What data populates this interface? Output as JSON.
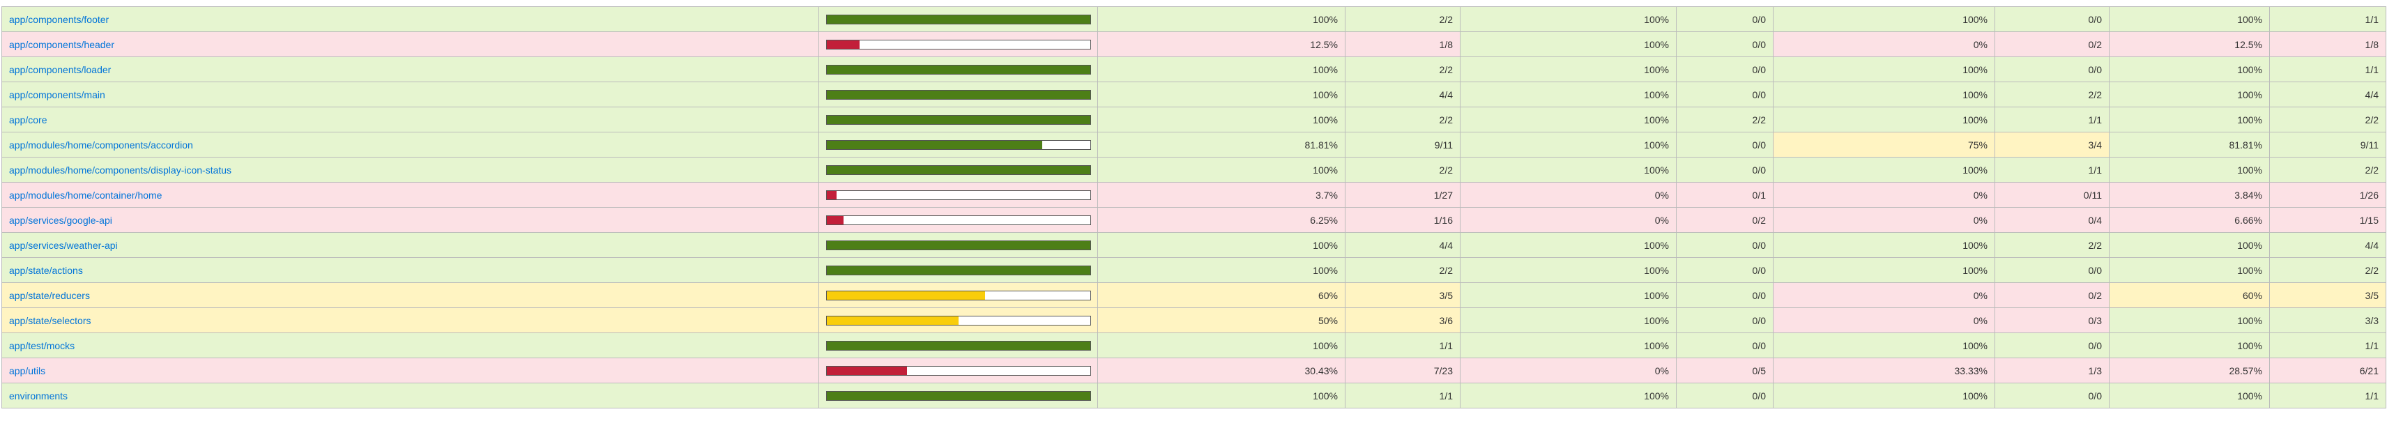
{
  "rows": [
    {
      "file": "app/components/footer",
      "level": "high",
      "fill": 1.0,
      "stmt_pct": "100%",
      "stmt_frac": "2/2",
      "br_pct": "100%",
      "br_frac": "0/0",
      "fn_pct": "100%",
      "fn_frac": "0/0",
      "ln_pct": "100%",
      "ln_frac": "1/1",
      "br_level": "high",
      "fn_level": "high",
      "ln_level": "high"
    },
    {
      "file": "app/components/header",
      "level": "low",
      "fill": 0.125,
      "stmt_pct": "12.5%",
      "stmt_frac": "1/8",
      "br_pct": "100%",
      "br_frac": "0/0",
      "fn_pct": "0%",
      "fn_frac": "0/2",
      "ln_pct": "12.5%",
      "ln_frac": "1/8",
      "br_level": "high",
      "fn_level": "low",
      "ln_level": "low"
    },
    {
      "file": "app/components/loader",
      "level": "high",
      "fill": 1.0,
      "stmt_pct": "100%",
      "stmt_frac": "2/2",
      "br_pct": "100%",
      "br_frac": "0/0",
      "fn_pct": "100%",
      "fn_frac": "0/0",
      "ln_pct": "100%",
      "ln_frac": "1/1",
      "br_level": "high",
      "fn_level": "high",
      "ln_level": "high"
    },
    {
      "file": "app/components/main",
      "level": "high",
      "fill": 1.0,
      "stmt_pct": "100%",
      "stmt_frac": "4/4",
      "br_pct": "100%",
      "br_frac": "0/0",
      "fn_pct": "100%",
      "fn_frac": "2/2",
      "ln_pct": "100%",
      "ln_frac": "4/4",
      "br_level": "high",
      "fn_level": "high",
      "ln_level": "high"
    },
    {
      "file": "app/core",
      "level": "high",
      "fill": 1.0,
      "stmt_pct": "100%",
      "stmt_frac": "2/2",
      "br_pct": "100%",
      "br_frac": "2/2",
      "fn_pct": "100%",
      "fn_frac": "1/1",
      "ln_pct": "100%",
      "ln_frac": "2/2",
      "br_level": "high",
      "fn_level": "high",
      "ln_level": "high"
    },
    {
      "file": "app/modules/home/components/accordion",
      "level": "high",
      "fill": 0.8181,
      "stmt_pct": "81.81%",
      "stmt_frac": "9/11",
      "br_pct": "100%",
      "br_frac": "0/0",
      "fn_pct": "75%",
      "fn_frac": "3/4",
      "ln_pct": "81.81%",
      "ln_frac": "9/11",
      "br_level": "high",
      "fn_level": "medium",
      "ln_level": "high"
    },
    {
      "file": "app/modules/home/components/display-icon-status",
      "level": "high",
      "fill": 1.0,
      "stmt_pct": "100%",
      "stmt_frac": "2/2",
      "br_pct": "100%",
      "br_frac": "0/0",
      "fn_pct": "100%",
      "fn_frac": "1/1",
      "ln_pct": "100%",
      "ln_frac": "2/2",
      "br_level": "high",
      "fn_level": "high",
      "ln_level": "high"
    },
    {
      "file": "app/modules/home/container/home",
      "level": "low",
      "fill": 0.037,
      "stmt_pct": "3.7%",
      "stmt_frac": "1/27",
      "br_pct": "0%",
      "br_frac": "0/1",
      "fn_pct": "0%",
      "fn_frac": "0/11",
      "ln_pct": "3.84%",
      "ln_frac": "1/26",
      "br_level": "low",
      "fn_level": "low",
      "ln_level": "low"
    },
    {
      "file": "app/services/google-api",
      "level": "low",
      "fill": 0.0625,
      "stmt_pct": "6.25%",
      "stmt_frac": "1/16",
      "br_pct": "0%",
      "br_frac": "0/2",
      "fn_pct": "0%",
      "fn_frac": "0/4",
      "ln_pct": "6.66%",
      "ln_frac": "1/15",
      "br_level": "low",
      "fn_level": "low",
      "ln_level": "low"
    },
    {
      "file": "app/services/weather-api",
      "level": "high",
      "fill": 1.0,
      "stmt_pct": "100%",
      "stmt_frac": "4/4",
      "br_pct": "100%",
      "br_frac": "0/0",
      "fn_pct": "100%",
      "fn_frac": "2/2",
      "ln_pct": "100%",
      "ln_frac": "4/4",
      "br_level": "high",
      "fn_level": "high",
      "ln_level": "high"
    },
    {
      "file": "app/state/actions",
      "level": "high",
      "fill": 1.0,
      "stmt_pct": "100%",
      "stmt_frac": "2/2",
      "br_pct": "100%",
      "br_frac": "0/0",
      "fn_pct": "100%",
      "fn_frac": "0/0",
      "ln_pct": "100%",
      "ln_frac": "2/2",
      "br_level": "high",
      "fn_level": "high",
      "ln_level": "high"
    },
    {
      "file": "app/state/reducers",
      "level": "medium",
      "fill": 0.6,
      "stmt_pct": "60%",
      "stmt_frac": "3/5",
      "br_pct": "100%",
      "br_frac": "0/0",
      "fn_pct": "0%",
      "fn_frac": "0/2",
      "ln_pct": "60%",
      "ln_frac": "3/5",
      "br_level": "high",
      "fn_level": "low",
      "ln_level": "medium"
    },
    {
      "file": "app/state/selectors",
      "level": "medium",
      "fill": 0.5,
      "stmt_pct": "50%",
      "stmt_frac": "3/6",
      "br_pct": "100%",
      "br_frac": "0/0",
      "fn_pct": "0%",
      "fn_frac": "0/3",
      "ln_pct": "100%",
      "ln_frac": "3/3",
      "br_level": "high",
      "fn_level": "low",
      "ln_level": "high"
    },
    {
      "file": "app/test/mocks",
      "level": "high",
      "fill": 1.0,
      "stmt_pct": "100%",
      "stmt_frac": "1/1",
      "br_pct": "100%",
      "br_frac": "0/0",
      "fn_pct": "100%",
      "fn_frac": "0/0",
      "ln_pct": "100%",
      "ln_frac": "1/1",
      "br_level": "high",
      "fn_level": "high",
      "ln_level": "high"
    },
    {
      "file": "app/utils",
      "level": "low",
      "fill": 0.3043,
      "stmt_pct": "30.43%",
      "stmt_frac": "7/23",
      "br_pct": "0%",
      "br_frac": "0/5",
      "fn_pct": "33.33%",
      "fn_frac": "1/3",
      "ln_pct": "28.57%",
      "ln_frac": "6/21",
      "br_level": "low",
      "fn_level": "low",
      "ln_level": "low"
    },
    {
      "file": "environments",
      "level": "high",
      "fill": 1.0,
      "stmt_pct": "100%",
      "stmt_frac": "1/1",
      "br_pct": "100%",
      "br_frac": "0/0",
      "fn_pct": "100%",
      "fn_frac": "0/0",
      "ln_pct": "100%",
      "ln_frac": "1/1",
      "br_level": "high",
      "fn_level": "high",
      "ln_level": "high"
    }
  ]
}
